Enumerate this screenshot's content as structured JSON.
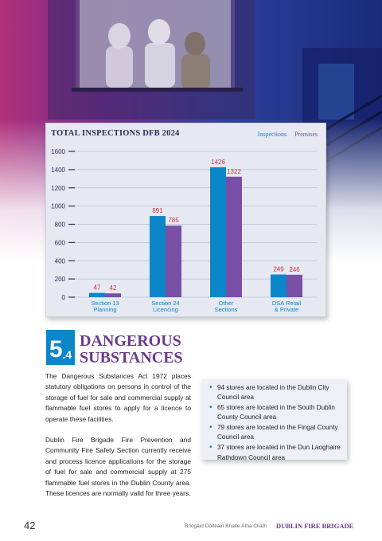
{
  "colors": {
    "inspections": "#0b86c9",
    "premises": "#7a4fa6",
    "value_label": "#d0303a",
    "accent_blue": "#0b86c9",
    "accent_purple": "#6a3a8c"
  },
  "chart_data": {
    "type": "bar",
    "title": "TOTAL INSPECTIONS DFB 2024",
    "categories": [
      [
        "Section 13",
        "Planning"
      ],
      [
        "Section 24",
        "Licencing"
      ],
      [
        "Other",
        "Sections"
      ],
      [
        "DSA Retail",
        "& Private"
      ]
    ],
    "series": [
      {
        "name": "Inspections",
        "values": [
          47,
          891,
          1426,
          249
        ]
      },
      {
        "name": "Premises",
        "values": [
          42,
          785,
          1322,
          246
        ]
      }
    ],
    "ylim": [
      0,
      1600
    ],
    "yticks": [
      0,
      200,
      400,
      600,
      800,
      1000,
      1200,
      1400,
      1600
    ],
    "legend_position": "top-right",
    "grid": true
  },
  "section": {
    "number": "5",
    "sub": ".4",
    "title_line1": "DANGEROUS",
    "title_line2": "SUBSTANCES"
  },
  "body": {
    "para1": "The Dangerous Substances Act 1972 places statutory obligations on persons in control of the storage of fuel for sale and commercial supply at flammable fuel stores to apply for a licence to operate these facilities.",
    "para2": "Dublin Fire Brigade Fire Prevention and Community Fire Safety Section currently receive and process licence applications for the storage of fuel for sale and commercial supply at 275 flammable fuel stores in the Dublin County area. These licences are normally valid for three years."
  },
  "bullets": [
    "94 stores are located in the Dublin City Council area",
    "65 stores are located in the South Dublin County Council area",
    "79 stores are located in the Fingal County Council area",
    "37 stores are located in the Dun Laoghaire Rathdown Council area"
  ],
  "footer": {
    "page_number": "42",
    "irish": "Briogáid Dóiteáin Bhaile Átha Cliath",
    "brand": "DUBLIN FIRE BRIGADE"
  }
}
